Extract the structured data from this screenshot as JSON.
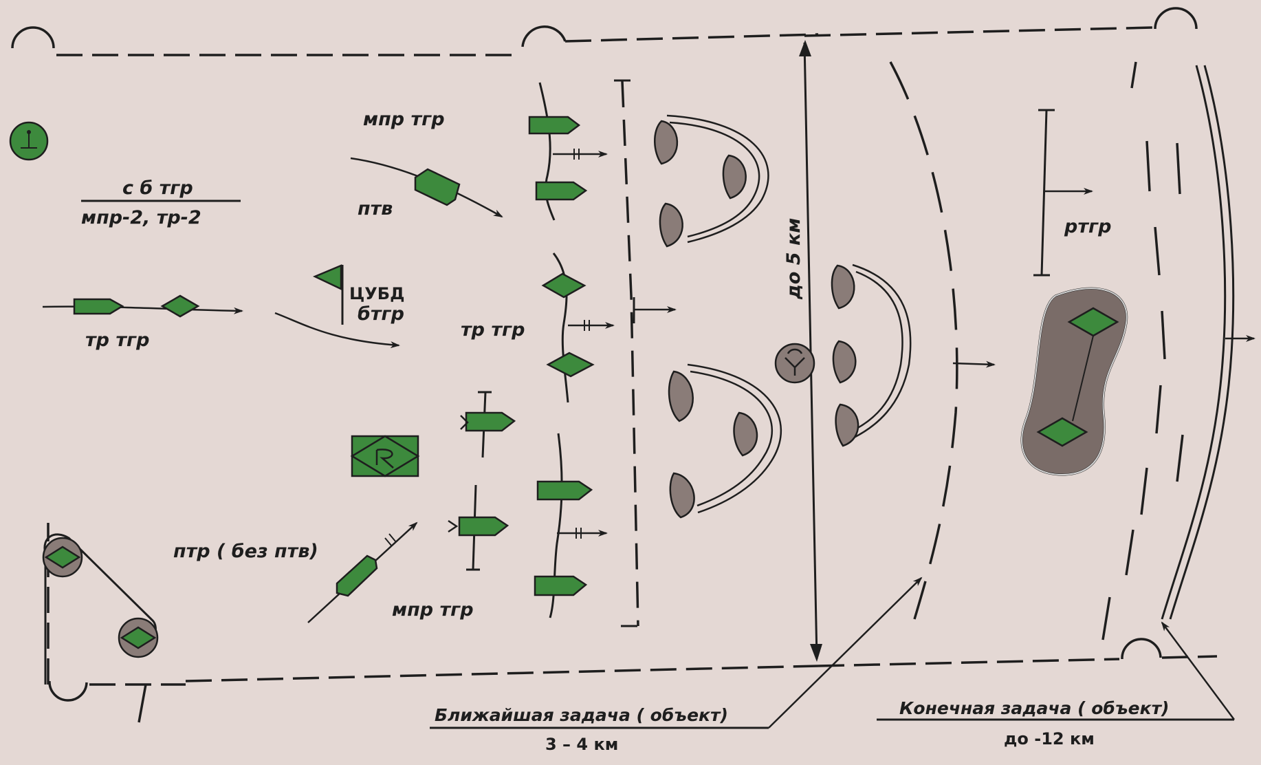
{
  "labels": {
    "sb_tgr": "с б тгр",
    "mpr2_tr2": "мпр-2,  тр-2",
    "tr_tgr_left": "тр тгр",
    "mpr_tgr_top": "мпр тгр",
    "ptv": "птв",
    "tsubd": "ЦУБД",
    "btgr": "бтгр",
    "tr_tgr_mid": "тр тгр",
    "ptr_bez_ptv": "птр ( без птв)",
    "mpr_tgr_bottom": "мпр тгр",
    "do_5_km": "до 5 км",
    "rtgr": "ртгр",
    "near_task": "Ближайшая  задача ( объект)",
    "near_task_dist": "3 – 4 км",
    "final_task": "Конечная  задача  ( объект)",
    "final_task_dist": "до -12 км"
  },
  "colors": {
    "background": "#e4d8d4",
    "friendly": "#3d8a3d",
    "enemy": "#8a7c78",
    "line": "#1e1e1e"
  }
}
